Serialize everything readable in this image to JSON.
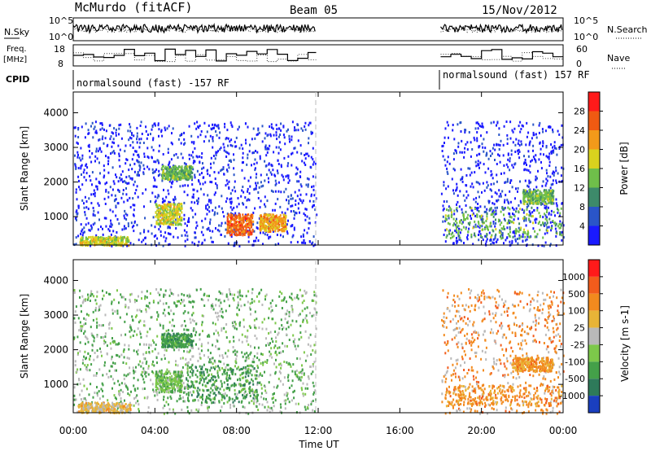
{
  "header": {
    "station": "McMurdo (fitACF)",
    "beam": "Beam 05",
    "date": "15/Nov/2012"
  },
  "top_panels": {
    "nsky_label": "N.Sky",
    "nsky_ticks": [
      "10^5",
      "10^0"
    ],
    "nsearch_label": "N.Search",
    "nsearch_ticks": [
      "10^5",
      "10^0"
    ],
    "freq_label_line1": "Freq.",
    "freq_label_line2": "[MHz]",
    "freq_ticks": [
      "18",
      "8"
    ],
    "nave_label": "Nave",
    "nave_ticks": [
      "60",
      "0"
    ],
    "cpid_label": "CPID",
    "cpid_segments": [
      {
        "text": "normalsound (fast) -157 RF",
        "start_hour": 0,
        "end_hour": 11.9
      },
      {
        "text": "normalsound (fast) 157 RF",
        "start_hour": 18.0,
        "end_hour": 24
      }
    ]
  },
  "chart_data": [
    {
      "type": "heatmap",
      "name": "power",
      "ylabel": "Slant Range [km]",
      "xlabel": "",
      "xlim_hours": [
        0,
        24
      ],
      "ylim_km": [
        180,
        4600
      ],
      "yticks": [
        "1000",
        "2000",
        "3000",
        "4000"
      ],
      "colorbar": {
        "label": "Power [dB]",
        "ticks": [
          "4",
          "8",
          "12",
          "16",
          "20",
          "24",
          "28"
        ],
        "colors": [
          "#1a1aff",
          "#2a55c8",
          "#3d8a6a",
          "#6fbf4a",
          "#d9d21e",
          "#f29a1a",
          "#f05a12",
          "#ff1a1a"
        ]
      },
      "data_gap_hours": [
        11.9,
        18.0
      ],
      "echo_features": [
        {
          "t0": 4.3,
          "t1": 5.8,
          "r0": 2100,
          "r1": 2500,
          "level": 3
        },
        {
          "t0": 4.0,
          "t1": 5.3,
          "r0": 800,
          "r1": 1400,
          "level": 4
        },
        {
          "t0": 7.5,
          "t1": 8.8,
          "r0": 500,
          "r1": 1100,
          "level": 6
        },
        {
          "t0": 9.1,
          "t1": 10.4,
          "r0": 600,
          "r1": 1100,
          "level": 5
        },
        {
          "t0": 0.3,
          "t1": 2.7,
          "r0": 200,
          "r1": 450,
          "level": 4
        },
        {
          "t0": 18.2,
          "t1": 23.9,
          "r0": 400,
          "r1": 1300,
          "level": 3
        },
        {
          "t0": 22.0,
          "t1": 23.5,
          "r0": 1400,
          "r1": 1800,
          "level": 3
        }
      ]
    },
    {
      "type": "heatmap",
      "name": "velocity",
      "ylabel": "Slant Range [km]",
      "xlabel": "Time UT",
      "xlim_hours": [
        0,
        24
      ],
      "xticks": [
        "00:00",
        "04:00",
        "08:00",
        "12:00",
        "16:00",
        "20:00",
        "00:00"
      ],
      "ylim_km": [
        180,
        4600
      ],
      "yticks": [
        "1000",
        "2000",
        "3000",
        "4000"
      ],
      "colorbar": {
        "label": "Velocity [m s-1]",
        "ticks": [
          "1000",
          "500",
          "100",
          "25",
          "-25",
          "-100",
          "-500",
          "-1000"
        ],
        "colors": [
          "#1a3fbf",
          "#2e7a5a",
          "#44a049",
          "#7dc84a",
          "#b9b9b9",
          "#e8b437",
          "#f28a1e",
          "#f25c1c",
          "#ff1a1a"
        ]
      },
      "data_gap_hours": [
        11.9,
        18.0
      ],
      "echo_features": [
        {
          "t0": 4.3,
          "t1": 5.8,
          "r0": 2100,
          "r1": 2500,
          "level": 2
        },
        {
          "t0": 4.0,
          "t1": 5.3,
          "r0": 800,
          "r1": 1400,
          "level": 3
        },
        {
          "t0": 5.5,
          "t1": 9.0,
          "r0": 500,
          "r1": 1600,
          "level": 2
        },
        {
          "t0": 0.2,
          "t1": 2.8,
          "r0": 200,
          "r1": 500,
          "level": 5
        },
        {
          "t0": 18.2,
          "t1": 23.9,
          "r0": 400,
          "r1": 1000,
          "level": 6
        },
        {
          "t0": 21.5,
          "t1": 23.5,
          "r0": 1400,
          "r1": 1800,
          "level": 6
        }
      ]
    }
  ]
}
